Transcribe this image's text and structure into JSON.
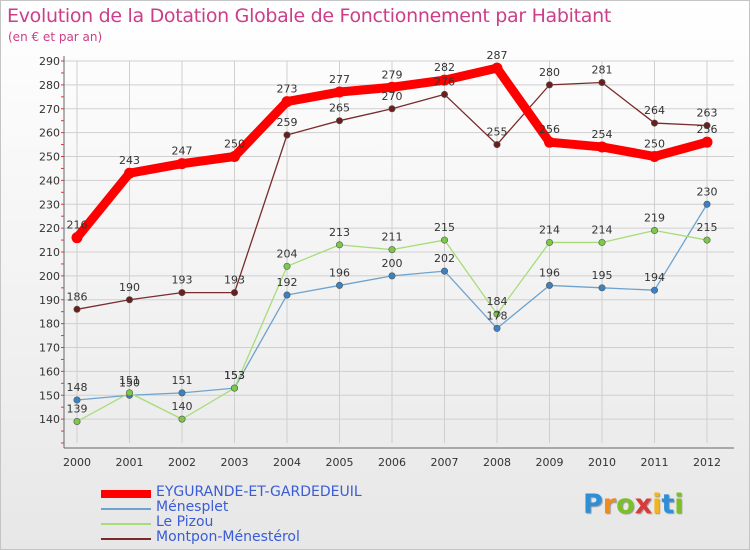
{
  "header": {
    "title": "Evolution de la Dotation Globale de Fonctionnement par Habitant",
    "subtitle": "(en € et par an)"
  },
  "logo": {
    "text": "Proxiti",
    "letters": [
      "P",
      "r",
      "o",
      "x",
      "i",
      "t",
      "i"
    ],
    "letter_colors": [
      "#2f8fd6",
      "#f28a1e",
      "#7cbf2a",
      "#d93a3a",
      "#f2b51e",
      "#2f8fd6",
      "#7cbf2a"
    ]
  },
  "colors": {
    "title": "#cc3e8a",
    "axis_text": "#333333",
    "grid": "#cfcfcf",
    "tick_red": "#e8333a",
    "legend_text": "#3a5cd6"
  },
  "chart_data": {
    "type": "line",
    "title": "Evolution de la Dotation Globale de Fonctionnement par Habitant",
    "subtitle": "(en € et par an)",
    "xlabel": "",
    "ylabel": "",
    "ylim": [
      130,
      290
    ],
    "y_ticks": [
      140,
      150,
      160,
      170,
      180,
      190,
      200,
      210,
      220,
      230,
      240,
      250,
      260,
      270,
      280,
      290
    ],
    "grid": true,
    "legend_position": "bottom-left",
    "categories": [
      "2000",
      "2001",
      "2002",
      "2003",
      "2004",
      "2005",
      "2006",
      "2007",
      "2008",
      "2009",
      "2010",
      "2011",
      "2012"
    ],
    "series": [
      {
        "name": "EYGURANDE-ET-GARDEDEUIL",
        "color": "#ff0000",
        "marker_color": "#ff0000",
        "style": "thick",
        "values": [
          216,
          243,
          247,
          250,
          273,
          277,
          279,
          282,
          287,
          256,
          254,
          250,
          256
        ]
      },
      {
        "name": "Ménesplet",
        "color": "#6fa3cd",
        "marker_color": "#3a82c4",
        "style": "thin",
        "values": [
          148,
          150,
          151,
          153,
          192,
          196,
          200,
          202,
          178,
          196,
          195,
          194,
          230
        ]
      },
      {
        "name": "Le Pizou",
        "color": "#a6dd78",
        "marker_color": "#7cc84a",
        "style": "thin",
        "values": [
          139,
          151,
          140,
          153,
          204,
          213,
          211,
          215,
          184,
          214,
          214,
          219,
          215
        ]
      },
      {
        "name": "Montpon-Ménestérol",
        "color": "#7a2b2b",
        "marker_color": "#6a1f1f",
        "style": "thin",
        "values": [
          186,
          190,
          193,
          193,
          259,
          265,
          270,
          276,
          255,
          280,
          281,
          264,
          263
        ]
      }
    ]
  }
}
